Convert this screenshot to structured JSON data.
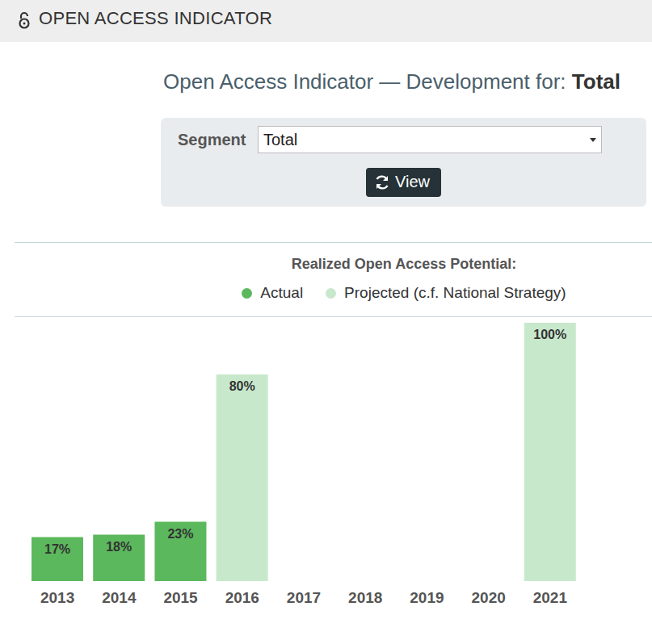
{
  "header": {
    "title": "OPEN ACCESS INDICATOR"
  },
  "page": {
    "title": "Open Access Indicator — Development for:",
    "segment": "Total"
  },
  "form": {
    "label": "Segment",
    "selected": "Total",
    "button": "View"
  },
  "chart_data": {
    "type": "bar",
    "legend_title": "Realized Open Access Potential:",
    "categories": [
      "2013",
      "2014",
      "2015",
      "2016",
      "2017",
      "2018",
      "2019",
      "2020",
      "2021"
    ],
    "series": [
      {
        "name": "Actual",
        "color": "#5cb85c",
        "values": [
          17,
          18,
          23,
          null,
          null,
          null,
          null,
          null,
          null
        ],
        "value_labels": [
          "17%",
          "18%",
          "23%",
          null,
          null,
          null,
          null,
          null,
          null
        ]
      },
      {
        "name": "Projected (c.f. National Strategy)",
        "color": "#c8e8cc",
        "values": [
          null,
          null,
          null,
          80,
          null,
          null,
          null,
          null,
          100
        ],
        "value_labels": [
          null,
          null,
          null,
          "80%",
          null,
          null,
          null,
          null,
          "100%"
        ]
      }
    ],
    "stacked": true,
    "data_labels": true,
    "tick_labels": "x",
    "ylim": [
      0,
      100
    ]
  }
}
